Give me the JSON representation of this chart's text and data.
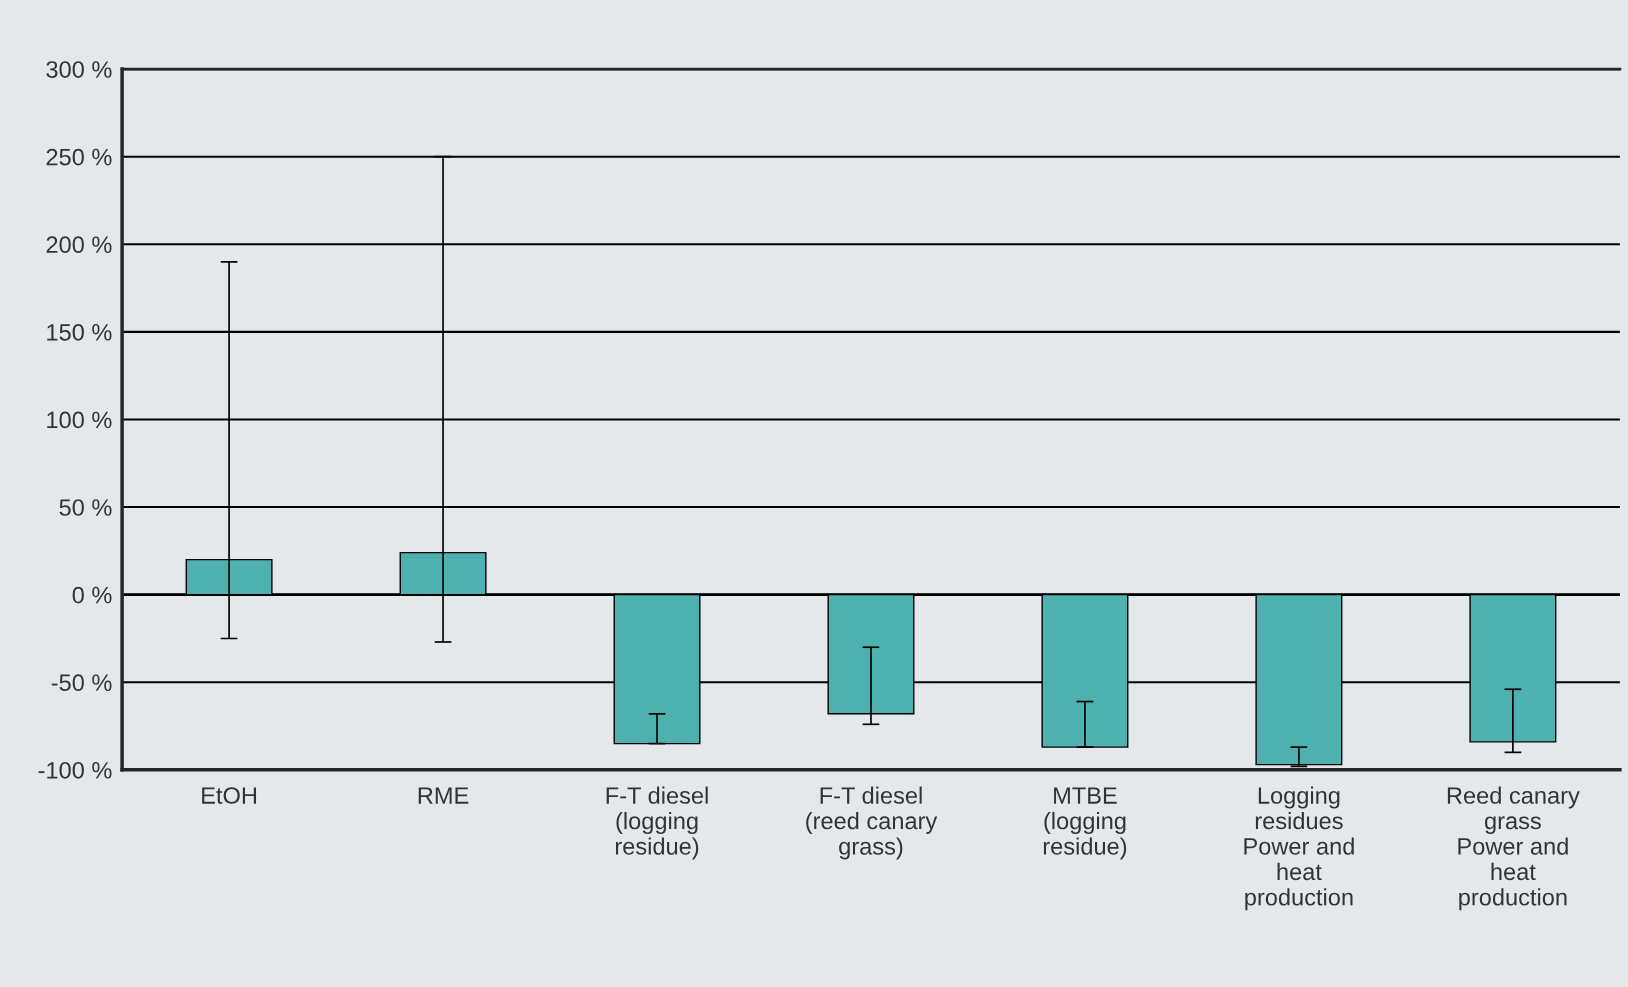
{
  "chart_data": {
    "type": "bar",
    "categories": [
      "EtOH",
      "RME",
      "F-T diesel\n(logging\nresidue)",
      "F-T diesel\n(reed canary\ngrass)",
      "MTBE\n(logging\nresidue)",
      "Logging\nresidues\nPower and\nheat\nproduction",
      "Reed canary\ngrass\nPower and\nheat\nproduction"
    ],
    "values": [
      20,
      24,
      -85,
      -68,
      -87,
      -97,
      -84
    ],
    "errors": [
      [
        -25,
        190
      ],
      [
        -27,
        250
      ],
      [
        -85,
        -68
      ],
      [
        -74,
        -30
      ],
      [
        -87,
        -61
      ],
      [
        -98,
        -87
      ],
      [
        -90,
        -54
      ]
    ],
    "color": "#4fb0b0",
    "ylim": [
      -100,
      300
    ],
    "yticks": [
      {
        "value": -100,
        "label": "-100 %"
      },
      {
        "value": -50,
        "label": "-50 %"
      },
      {
        "value": 0,
        "label": "0 %"
      },
      {
        "value": 50,
        "label": "50 %"
      },
      {
        "value": 100,
        "label": "100 %"
      },
      {
        "value": 150,
        "label": "150 %"
      },
      {
        "value": 200,
        "label": "200 %"
      },
      {
        "value": 250,
        "label": "250 %"
      },
      {
        "value": 300,
        "label": "300 %"
      }
    ],
    "grid": "y",
    "legend": false
  }
}
